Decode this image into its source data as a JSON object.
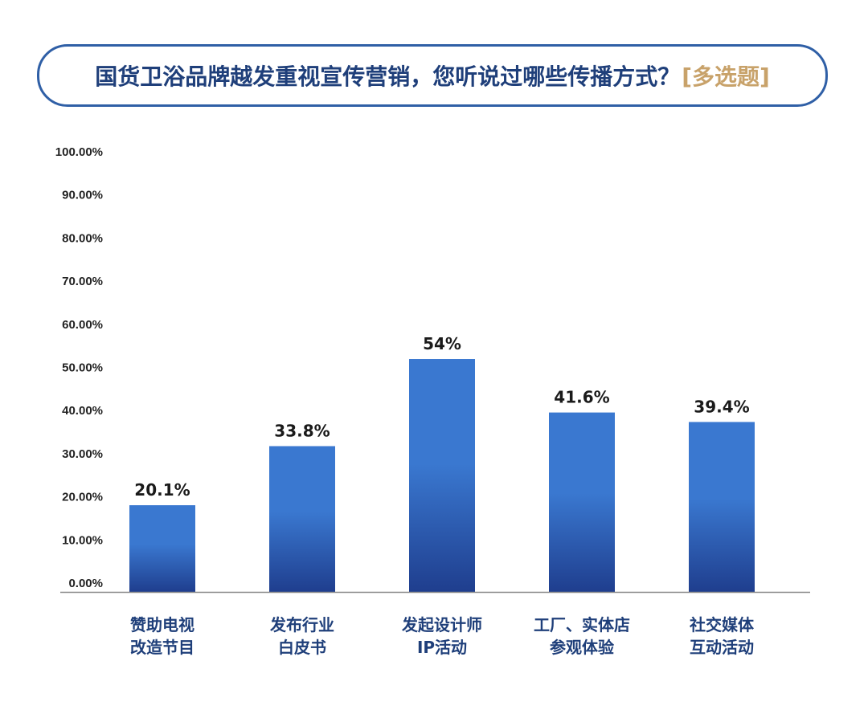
{
  "header": {
    "title": "国货卫浴品牌越发重视宣传营销，您听说过哪些传播方式？",
    "tag": "[多选题]"
  },
  "colors": {
    "bar_top": "#3a78d0",
    "bar_bottom": "#1f3e8e",
    "title_border": "#2f5fa6",
    "title_text": "#1f3f7a",
    "tag_text": "#c8a26a",
    "axis": "#888888"
  },
  "chart_data": {
    "type": "bar",
    "categories": [
      [
        "赞助电视",
        "改造节目"
      ],
      [
        "发布行业",
        "白皮书"
      ],
      [
        "发起设计师",
        "IP活动"
      ],
      [
        "工厂、实体店",
        "参观体验"
      ],
      [
        "社交媒体",
        "互动活动"
      ]
    ],
    "values": [
      20.1,
      33.8,
      54,
      41.6,
      39.4
    ],
    "value_labels": [
      "20.1%",
      "33.8%",
      "54%",
      "41.6%",
      "39.4%"
    ],
    "ylim": [
      0,
      100
    ],
    "yticks": [
      0,
      10,
      20,
      30,
      40,
      50,
      60,
      70,
      80,
      90,
      100
    ],
    "ytick_labels": [
      "0.00%",
      "10.00%",
      "20.00%",
      "30.00%",
      "40.00%",
      "50.00%",
      "60.00%",
      "70.00%",
      "80.00%",
      "90.00%",
      "100.00%"
    ],
    "grid": false,
    "legend": "none"
  }
}
